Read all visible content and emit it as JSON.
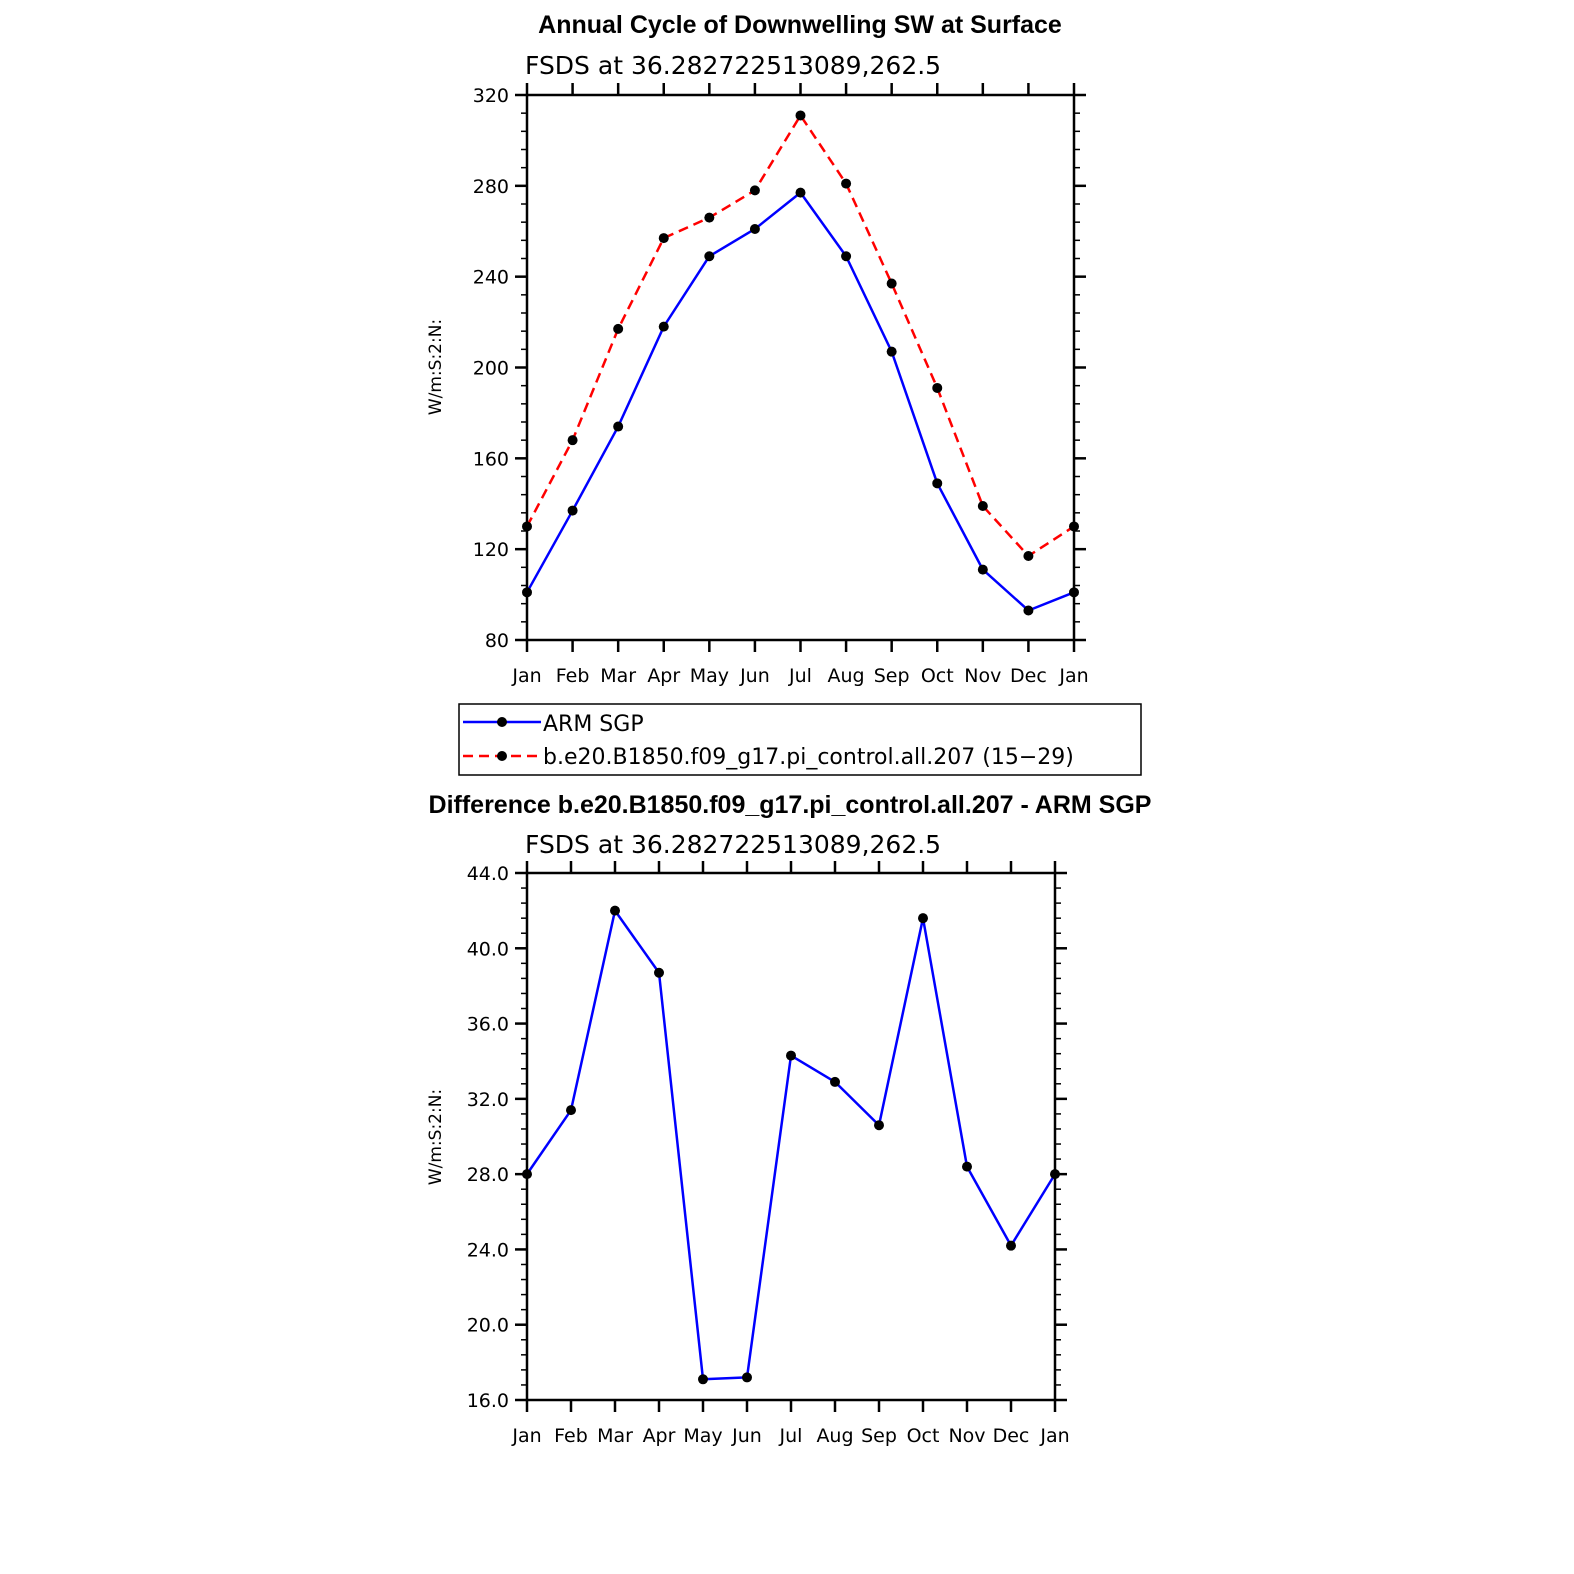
{
  "chart_data": [
    {
      "type": "line",
      "title": "Annual Cycle of Downwelling SW at Surface",
      "subtitle": "FSDS at 36.282722513089,262.5",
      "ylabel": "W/m:S:2:N:",
      "xlabel": "",
      "categories": [
        "Jan",
        "Feb",
        "Mar",
        "Apr",
        "May",
        "Jun",
        "Jul",
        "Aug",
        "Sep",
        "Oct",
        "Nov",
        "Dec",
        "Jan"
      ],
      "ylim": [
        80,
        320
      ],
      "yticks": [
        "80",
        "120",
        "160",
        "200",
        "240",
        "280",
        "320"
      ],
      "grid": false,
      "legend_position": "bottom",
      "series": [
        {
          "name": "ARM SGP",
          "color": "#0000ff",
          "dash": "solid",
          "marker": "dot",
          "values": [
            101,
            137,
            174,
            218,
            249,
            261,
            277,
            249,
            207,
            149,
            111,
            93,
            101
          ]
        },
        {
          "name": "b.e20.B1850.f09_g17.pi_control.all.207 (15−29)",
          "color": "#ff0000",
          "dash": "dashed",
          "marker": "dot",
          "values": [
            130,
            168,
            217,
            257,
            266,
            278,
            311,
            281,
            237,
            191,
            139,
            117,
            130
          ]
        }
      ]
    },
    {
      "type": "line",
      "title": "Difference b.e20.B1850.f09_g17.pi_control.all.207 - ARM SGP",
      "subtitle": "FSDS at 36.282722513089,262.5",
      "ylabel": "W/m:S:2:N:",
      "xlabel": "",
      "categories": [
        "Jan",
        "Feb",
        "Mar",
        "Apr",
        "May",
        "Jun",
        "Jul",
        "Aug",
        "Sep",
        "Oct",
        "Nov",
        "Dec",
        "Jan"
      ],
      "ylim": [
        16,
        44
      ],
      "yticks": [
        "16.0",
        "20.0",
        "24.0",
        "28.0",
        "32.0",
        "36.0",
        "40.0",
        "44.0"
      ],
      "grid": false,
      "series": [
        {
          "color": "#0000ff",
          "dash": "solid",
          "marker": "dot",
          "values": [
            28.0,
            31.4,
            42.0,
            38.7,
            17.1,
            17.2,
            34.3,
            32.9,
            30.6,
            41.6,
            28.4,
            24.2,
            28.0
          ]
        }
      ]
    }
  ]
}
